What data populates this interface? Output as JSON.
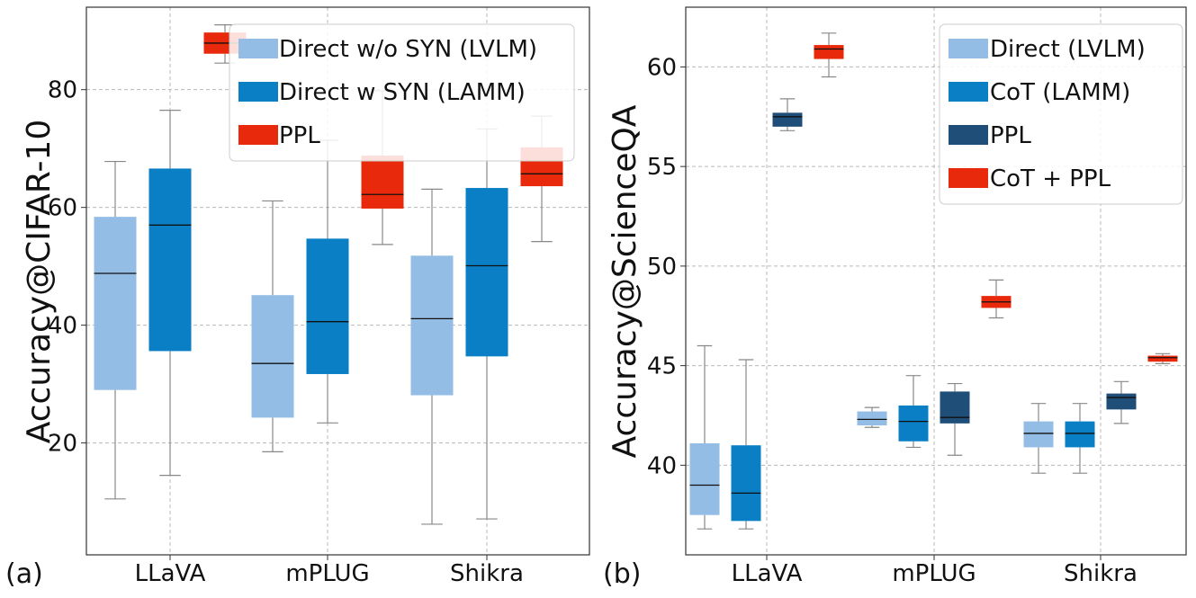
{
  "panel_labels": [
    "(a)",
    "(b)"
  ],
  "chart_data": [
    {
      "type": "box",
      "panel": "(a)",
      "ylabel": "Accuracy@CIFAR-10",
      "xlabel": "",
      "categories": [
        "LLaVA",
        "mPLUG",
        "Shikra"
      ],
      "ylim": [
        1,
        94
      ],
      "yticks": [
        "20",
        "40",
        "60",
        "80"
      ],
      "grid": true,
      "legend": "top-right",
      "series": [
        {
          "name": "Direct w/o SYN (LVLM)",
          "color": "#94bde6",
          "boxes": [
            {
              "whislo": 10.5,
              "q1": 29,
              "med": 48.8,
              "q3": 58.4,
              "whishi": 67.8
            },
            {
              "whislo": 18.5,
              "q1": 24.3,
              "med": 33.5,
              "q3": 45.1,
              "whishi": 61.1
            },
            {
              "whislo": 6.2,
              "q1": 28.1,
              "med": 41.1,
              "q3": 51.8,
              "whishi": 63.1
            }
          ]
        },
        {
          "name": "Direct w SYN (LAMM)",
          "color": "#0a7fc6",
          "boxes": [
            {
              "whislo": 14.5,
              "q1": 35.6,
              "med": 57,
              "q3": 66.6,
              "whishi": 76.5
            },
            {
              "whislo": 23.4,
              "q1": 31.7,
              "med": 40.6,
              "q3": 54.7,
              "whishi": 71.4
            },
            {
              "whislo": 7.1,
              "q1": 34.7,
              "med": 50.1,
              "q3": 63.3,
              "whishi": 73.3
            }
          ]
        },
        {
          "name": "PPL",
          "color": "#e8290b",
          "boxes": [
            {
              "whislo": 84.5,
              "q1": 86.1,
              "med": 87.9,
              "q3": 89.7,
              "whishi": 91
            },
            {
              "whislo": 53.7,
              "q1": 59.8,
              "med": 62.2,
              "q3": 68.8,
              "whishi": 79.8
            },
            {
              "whislo": 54.2,
              "q1": 63.6,
              "med": 65.7,
              "q3": 70.2,
              "whishi": 75.5
            }
          ]
        }
      ]
    },
    {
      "type": "box",
      "panel": "(b)",
      "ylabel": "Accuracy@ScienceQA",
      "xlabel": "",
      "categories": [
        "LLaVA",
        "mPLUG",
        "Shikra"
      ],
      "ylim": [
        35.5,
        63
      ],
      "yticks": [
        "40",
        "45",
        "50",
        "55",
        "60"
      ],
      "grid": true,
      "legend": "top-right",
      "series": [
        {
          "name": "Direct (LVLM)",
          "color": "#94bde6",
          "boxes": [
            {
              "whislo": 36.8,
              "q1": 37.5,
              "med": 39,
              "q3": 41.1,
              "whishi": 46
            },
            {
              "whislo": 41.9,
              "q1": 42,
              "med": 42.3,
              "q3": 42.7,
              "whishi": 42.9
            },
            {
              "whislo": 39.6,
              "q1": 40.9,
              "med": 41.6,
              "q3": 42.2,
              "whishi": 43.1
            }
          ]
        },
        {
          "name": "CoT (LAMM)",
          "color": "#0a7fc6",
          "boxes": [
            {
              "whislo": 36.8,
              "q1": 37.2,
              "med": 38.6,
              "q3": 41,
              "whishi": 45.3
            },
            {
              "whislo": 40.9,
              "q1": 41.2,
              "med": 42.2,
              "q3": 43,
              "whishi": 44.5
            },
            {
              "whislo": 39.6,
              "q1": 40.9,
              "med": 41.6,
              "q3": 42.2,
              "whishi": 43.1
            }
          ]
        },
        {
          "name": "PPL",
          "color": "#1f4e79",
          "boxes": [
            {
              "whislo": 56.8,
              "q1": 57,
              "med": 57.5,
              "q3": 57.7,
              "whishi": 58.4
            },
            {
              "whislo": 40.5,
              "q1": 42.1,
              "med": 42.4,
              "q3": 43.7,
              "whishi": 44.1
            },
            {
              "whislo": 42.1,
              "q1": 42.8,
              "med": 43.4,
              "q3": 43.6,
              "whishi": 44.2
            }
          ]
        },
        {
          "name": "CoT + PPL",
          "color": "#e8290b",
          "boxes": [
            {
              "whislo": 59.5,
              "q1": 60.4,
              "med": 60.9,
              "q3": 61.1,
              "whishi": 61.7
            },
            {
              "whislo": 47.4,
              "q1": 47.9,
              "med": 48.2,
              "q3": 48.5,
              "whishi": 49.3
            },
            {
              "whislo": 45.1,
              "q1": 45.2,
              "med": 45.4,
              "q3": 45.5,
              "whishi": 45.6
            }
          ]
        }
      ]
    }
  ]
}
